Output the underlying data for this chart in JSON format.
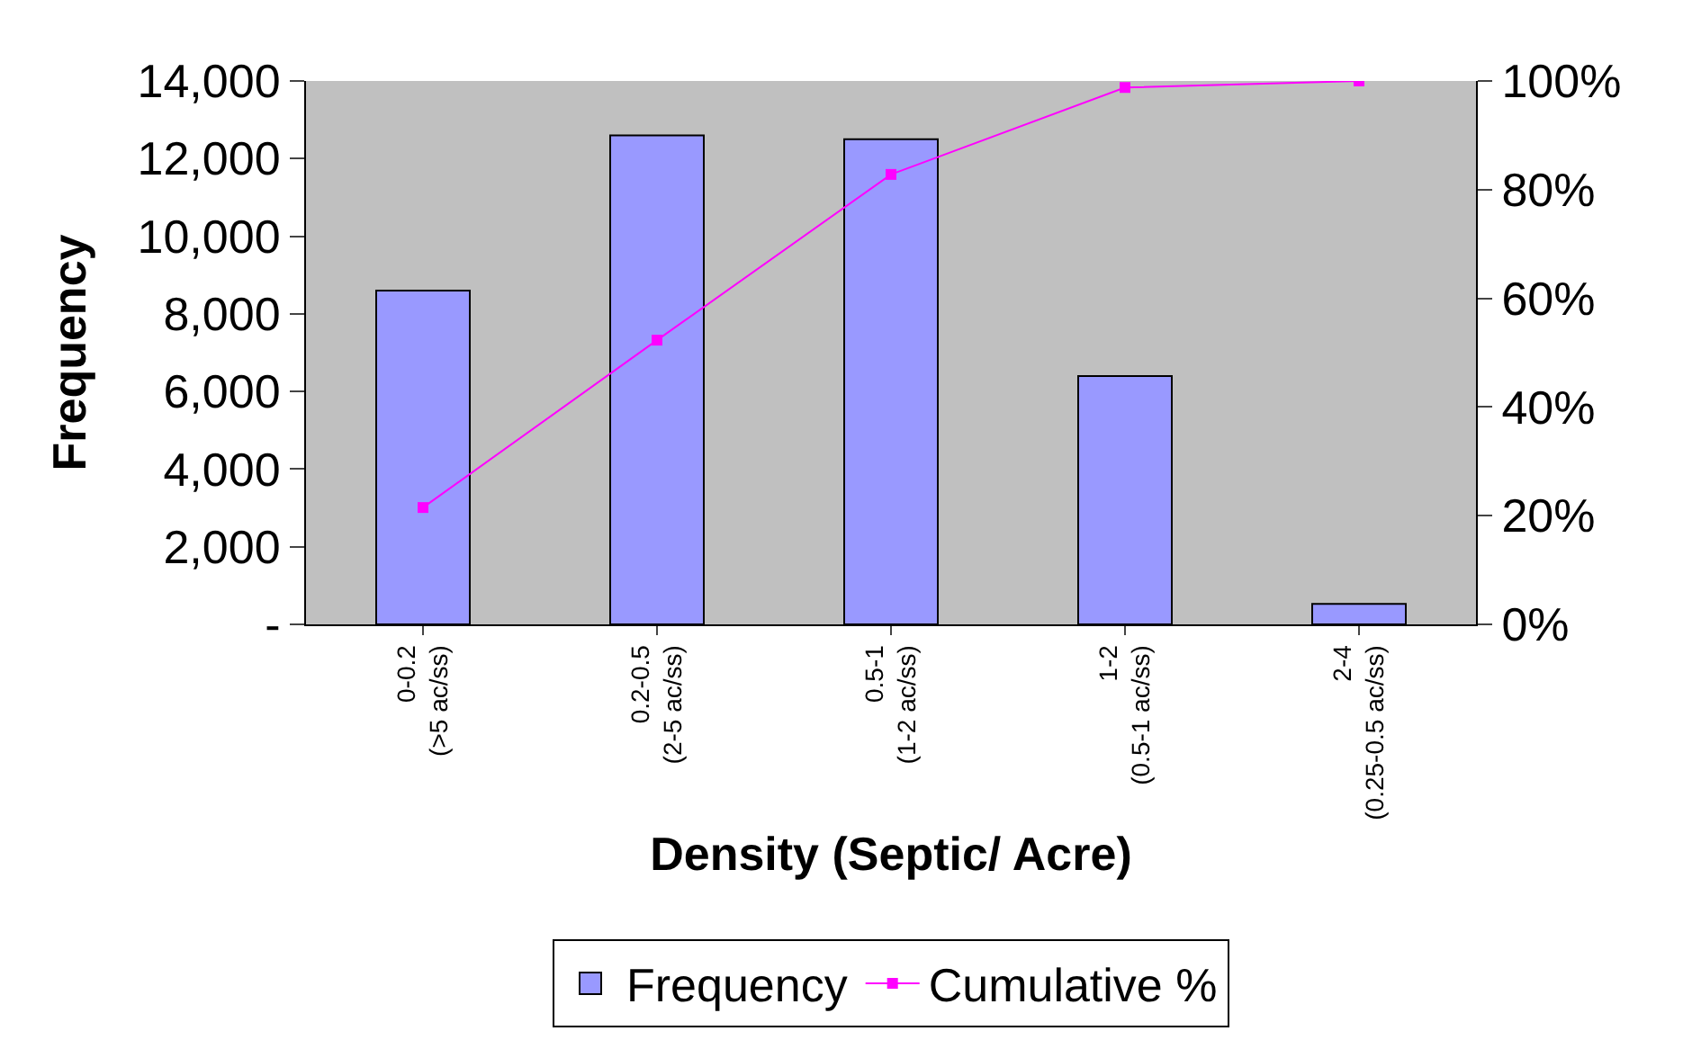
{
  "chart_data": {
    "type": "bar",
    "xlabel": "Density (Septic/ Acre)",
    "ylabel": "Frequency",
    "categories": [
      "0-0.2 (>5 ac/ss)",
      "0.2-0.5 (2-5 ac/ss)",
      "0.5-1 (1-2 ac/ss)",
      "1-2 (0.5-1 ac/ss)",
      "2-4 (0.25-0.5 ac/ss)"
    ],
    "series": [
      {
        "name": "Frequency",
        "color": "#9999ff",
        "values": [
          8600,
          12600,
          12500,
          6400,
          530
        ]
      },
      {
        "name": "Cumulative %",
        "type": "line",
        "axis": "y2",
        "color": "#ff00ff",
        "marker": "square",
        "values": [
          21.5,
          52.3,
          82.8,
          98.8,
          100
        ]
      }
    ],
    "ylim": [
      0,
      14000
    ],
    "yticks": [
      {
        "value": 0,
        "label": "-"
      },
      {
        "value": 2000,
        "label": "2,000"
      },
      {
        "value": 4000,
        "label": "4,000"
      },
      {
        "value": 6000,
        "label": "6,000"
      },
      {
        "value": 8000,
        "label": "8,000"
      },
      {
        "value": 10000,
        "label": "10,000"
      },
      {
        "value": 12000,
        "label": "12,000"
      },
      {
        "value": 14000,
        "label": "14,000"
      }
    ],
    "y2lim": [
      0,
      100
    ],
    "y2ticks": [
      {
        "value": 0,
        "label": "0%"
      },
      {
        "value": 20,
        "label": "20%"
      },
      {
        "value": 40,
        "label": "40%"
      },
      {
        "value": 60,
        "label": "60%"
      },
      {
        "value": 80,
        "label": "80%"
      },
      {
        "value": 100,
        "label": "100%"
      }
    ],
    "grid": false,
    "legend": "bottom"
  }
}
